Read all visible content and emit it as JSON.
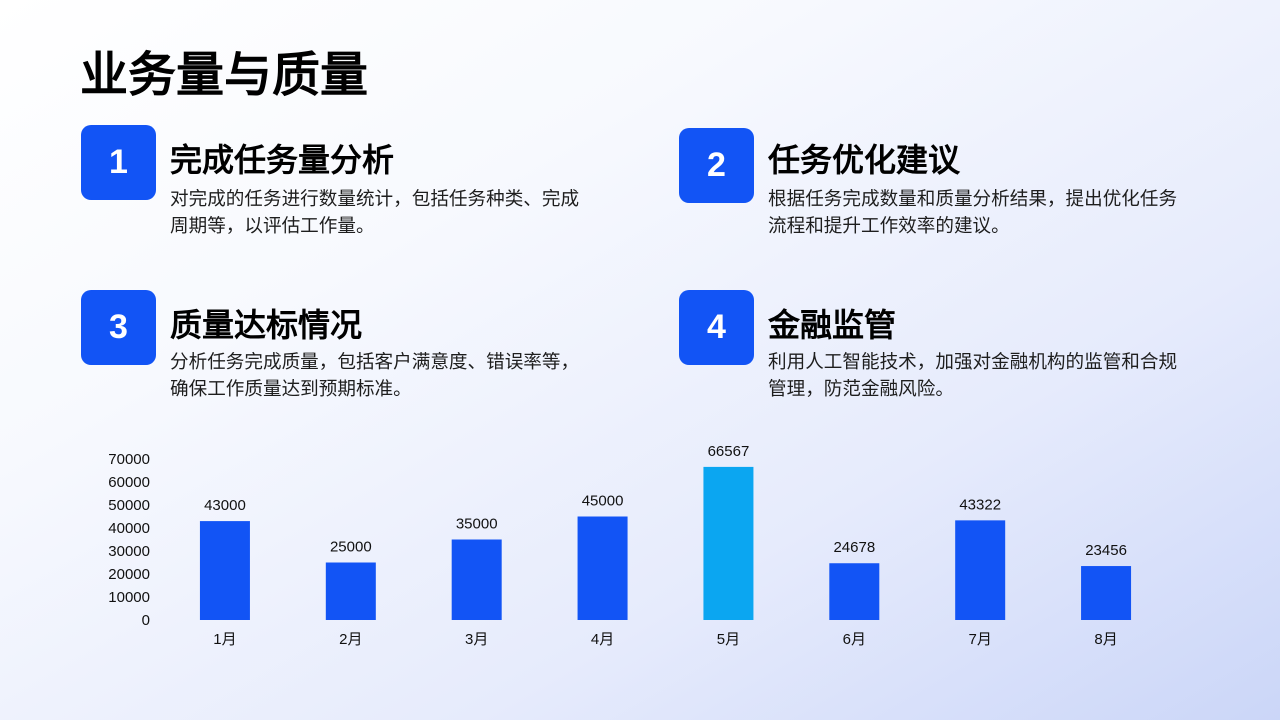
{
  "page": {
    "title": "业务量与质量"
  },
  "colors": {
    "accent": "#1254F5",
    "highlight": "#0BA6F1",
    "text": "#000000"
  },
  "cards": [
    {
      "number": "1",
      "title": "完成任务量分析",
      "lines": [
        "对完成的任务进行数量统计，包括任务种类、完成",
        "周期等，以评估工作量。"
      ]
    },
    {
      "number": "2",
      "title": "任务优化建议",
      "lines": [
        "根据任务完成数量和质量分析结果，提出优化任务",
        "流程和提升工作效率的建议。"
      ]
    },
    {
      "number": "3",
      "title": "质量达标情况",
      "lines": [
        "分析任务完成质量，包括客户满意度、错误率等，",
        "确保工作质量达到预期标准。"
      ]
    },
    {
      "number": "4",
      "title": "金融监管",
      "lines": [
        "利用人工智能技术，加强对金融机构的监管和合规",
        "管理，防范金融风险。"
      ]
    }
  ],
  "chart_data": {
    "type": "bar",
    "categories": [
      "1月",
      "2月",
      "3月",
      "4月",
      "5月",
      "6月",
      "7月",
      "8月"
    ],
    "values": [
      43000,
      25000,
      35000,
      45000,
      66567,
      24678,
      43322,
      23456
    ],
    "bar_colors": [
      "#1254F5",
      "#1254F5",
      "#1254F5",
      "#1254F5",
      "#0BA6F1",
      "#1254F5",
      "#1254F5",
      "#1254F5"
    ],
    "yticks": [
      0,
      10000,
      20000,
      30000,
      40000,
      50000,
      60000,
      70000
    ],
    "ylim": [
      0,
      70000
    ],
    "grid": false,
    "legend": "none",
    "data_labels": true
  }
}
